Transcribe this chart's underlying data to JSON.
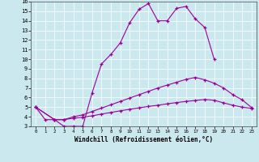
{
  "background_color": "#cce8ef",
  "line_color": "#990099",
  "xlabel": "Windchill (Refroidissement éolien,°C)",
  "xlim": [
    -0.5,
    23.5
  ],
  "ylim": [
    3,
    16
  ],
  "yticks": [
    3,
    4,
    5,
    6,
    7,
    8,
    9,
    10,
    11,
    12,
    13,
    14,
    15,
    16
  ],
  "xticks": [
    0,
    1,
    2,
    3,
    4,
    5,
    6,
    7,
    8,
    9,
    10,
    11,
    12,
    13,
    14,
    15,
    16,
    17,
    18,
    19,
    20,
    21,
    22,
    23
  ],
  "line1_x": [
    0,
    1,
    2,
    3,
    4,
    5,
    6,
    7,
    8,
    9,
    10,
    11,
    12,
    13,
    14,
    15,
    16,
    17,
    18,
    19
  ],
  "line1_y": [
    5.0,
    3.7,
    3.7,
    3.0,
    3.0,
    3.0,
    6.5,
    9.5,
    10.5,
    11.7,
    13.8,
    15.2,
    15.8,
    14.0,
    14.0,
    15.3,
    15.5,
    14.2,
    13.3,
    10.0
  ],
  "line2_x": [
    0,
    2,
    3,
    4,
    5,
    6,
    7,
    8,
    9,
    10,
    11,
    12,
    13,
    14,
    15,
    16,
    17,
    18,
    19,
    20,
    21,
    22,
    23
  ],
  "line2_y": [
    5.0,
    3.7,
    3.7,
    3.85,
    3.95,
    4.1,
    4.28,
    4.45,
    4.62,
    4.78,
    4.93,
    5.08,
    5.2,
    5.35,
    5.48,
    5.6,
    5.7,
    5.8,
    5.72,
    5.45,
    5.2,
    5.0,
    4.88
  ],
  "line3_x": [
    0,
    2,
    3,
    4,
    5,
    6,
    7,
    8,
    9,
    10,
    11,
    12,
    13,
    14,
    15,
    16,
    17,
    18,
    19,
    20,
    21,
    22,
    23
  ],
  "line3_y": [
    5.0,
    3.7,
    3.7,
    4.0,
    4.2,
    4.55,
    4.9,
    5.25,
    5.6,
    5.95,
    6.3,
    6.65,
    7.0,
    7.3,
    7.6,
    7.9,
    8.1,
    7.85,
    7.5,
    7.0,
    6.3,
    5.75,
    4.95
  ]
}
